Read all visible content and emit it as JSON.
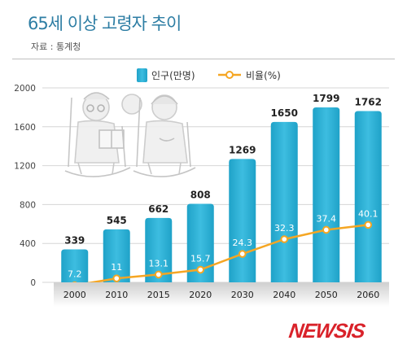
{
  "header": {
    "title": "65세 이상 고령자 추이",
    "source": "자료 : 통계청"
  },
  "legend": {
    "bar_label": "인구(만명)",
    "line_label": "비율(%)"
  },
  "logo": {
    "text": "NEWSIS"
  },
  "colors": {
    "bar": "#2fb3d6",
    "bar_light": "#5cc6e3",
    "line": "#f5a623",
    "title": "#2e7ea4"
  },
  "chart_data": {
    "type": "bar",
    "categories": [
      "2000",
      "2010",
      "2015",
      "2020",
      "2030",
      "2040",
      "2050",
      "2060"
    ],
    "series": [
      {
        "name": "인구(만명)",
        "type": "bar",
        "values": [
          339,
          545,
          662,
          808,
          1269,
          1650,
          1799,
          1762
        ]
      },
      {
        "name": "비율(%)",
        "type": "line",
        "values": [
          7.2,
          11,
          13.1,
          15.7,
          24.3,
          32.3,
          37.4,
          40.1
        ]
      }
    ],
    "y_ticks": [
      "2000",
      "1600",
      "1200",
      "800",
      "400",
      "0"
    ],
    "ylim": [
      0,
      2000
    ],
    "grid": true,
    "legend_position": "top"
  }
}
